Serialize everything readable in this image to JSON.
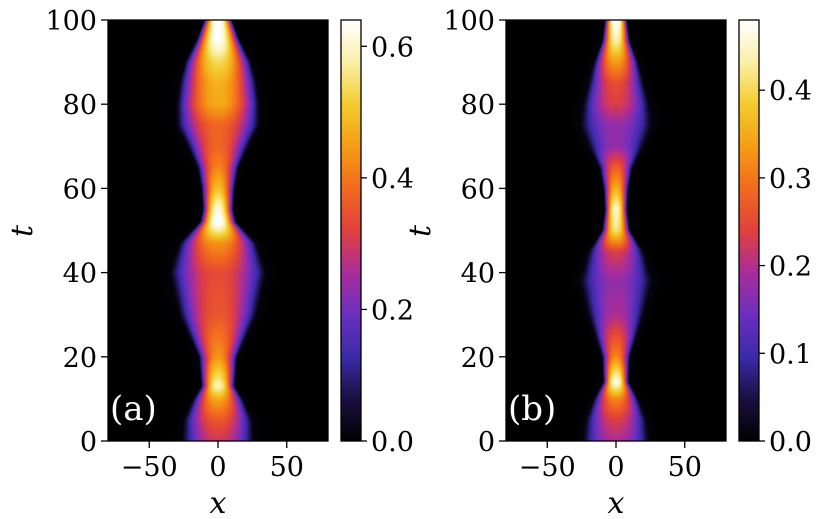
{
  "colors": {
    "background": "#000000",
    "colormap": [
      "#000000",
      "#1a1040",
      "#3b2aa8",
      "#6a2fc0",
      "#a92d9a",
      "#e0403e",
      "#f26a1f",
      "#f59d14",
      "#f3cc2e",
      "#fbf0a8",
      "#ffffff"
    ]
  },
  "chart_data": [
    {
      "type": "heatmap",
      "panel_label": "(a)",
      "xlabel": "x",
      "ylabel": "t",
      "xlim": [
        -80,
        80
      ],
      "ylim": [
        0,
        100
      ],
      "x_ticks": [
        -50,
        0,
        50
      ],
      "x_tick_labels": [
        "−50",
        "0",
        "50"
      ],
      "y_ticks": [
        0,
        20,
        40,
        60,
        80,
        100
      ],
      "y_tick_labels": [
        "0",
        "20",
        "40",
        "60",
        "80",
        "100"
      ],
      "colorbar": {
        "range": [
          0.0,
          0.64
        ],
        "ticks": [
          0.0,
          0.2,
          0.4,
          0.6
        ],
        "tick_labels": [
          "0.0",
          "0.2",
          "0.4",
          "0.6"
        ]
      },
      "profile_t": [
        0,
        5,
        10,
        13,
        20,
        30,
        40,
        47,
        52,
        55,
        60,
        65,
        70,
        75,
        80,
        85,
        90,
        95,
        100
      ],
      "profile_width": [
        26,
        25,
        18,
        12,
        14,
        28,
        35,
        28,
        13,
        11,
        12,
        15,
        22,
        30,
        30,
        28,
        24,
        16,
        10
      ],
      "profile_peak": [
        0.28,
        0.34,
        0.45,
        0.58,
        0.42,
        0.34,
        0.32,
        0.42,
        0.64,
        0.6,
        0.48,
        0.4,
        0.36,
        0.36,
        0.45,
        0.46,
        0.52,
        0.62,
        0.64
      ]
    },
    {
      "type": "heatmap",
      "panel_label": "(b)",
      "xlabel": "x",
      "ylabel": "t",
      "xlim": [
        -80,
        80
      ],
      "ylim": [
        0,
        100
      ],
      "x_ticks": [
        -50,
        0,
        50
      ],
      "x_tick_labels": [
        "−50",
        "0",
        "50"
      ],
      "y_ticks": [
        0,
        20,
        40,
        60,
        80,
        100
      ],
      "y_tick_labels": [
        "0",
        "20",
        "40",
        "60",
        "80",
        "100"
      ],
      "colorbar": {
        "range": [
          0.0,
          0.48
        ],
        "ticks": [
          0.0,
          0.1,
          0.2,
          0.3,
          0.4
        ],
        "tick_labels": [
          "0.0",
          "0.1",
          "0.2",
          "0.3",
          "0.4"
        ]
      },
      "profile_t": [
        0,
        5,
        10,
        14,
        20,
        30,
        38,
        45,
        50,
        55,
        60,
        65,
        70,
        75,
        80,
        85,
        90,
        95,
        100
      ],
      "profile_width": [
        24,
        22,
        16,
        9,
        10,
        20,
        26,
        20,
        10,
        8,
        9,
        12,
        20,
        26,
        24,
        20,
        16,
        10,
        8
      ],
      "profile_peak": [
        0.18,
        0.22,
        0.3,
        0.46,
        0.3,
        0.18,
        0.16,
        0.22,
        0.4,
        0.44,
        0.34,
        0.26,
        0.16,
        0.16,
        0.22,
        0.24,
        0.32,
        0.42,
        0.48
      ]
    }
  ]
}
